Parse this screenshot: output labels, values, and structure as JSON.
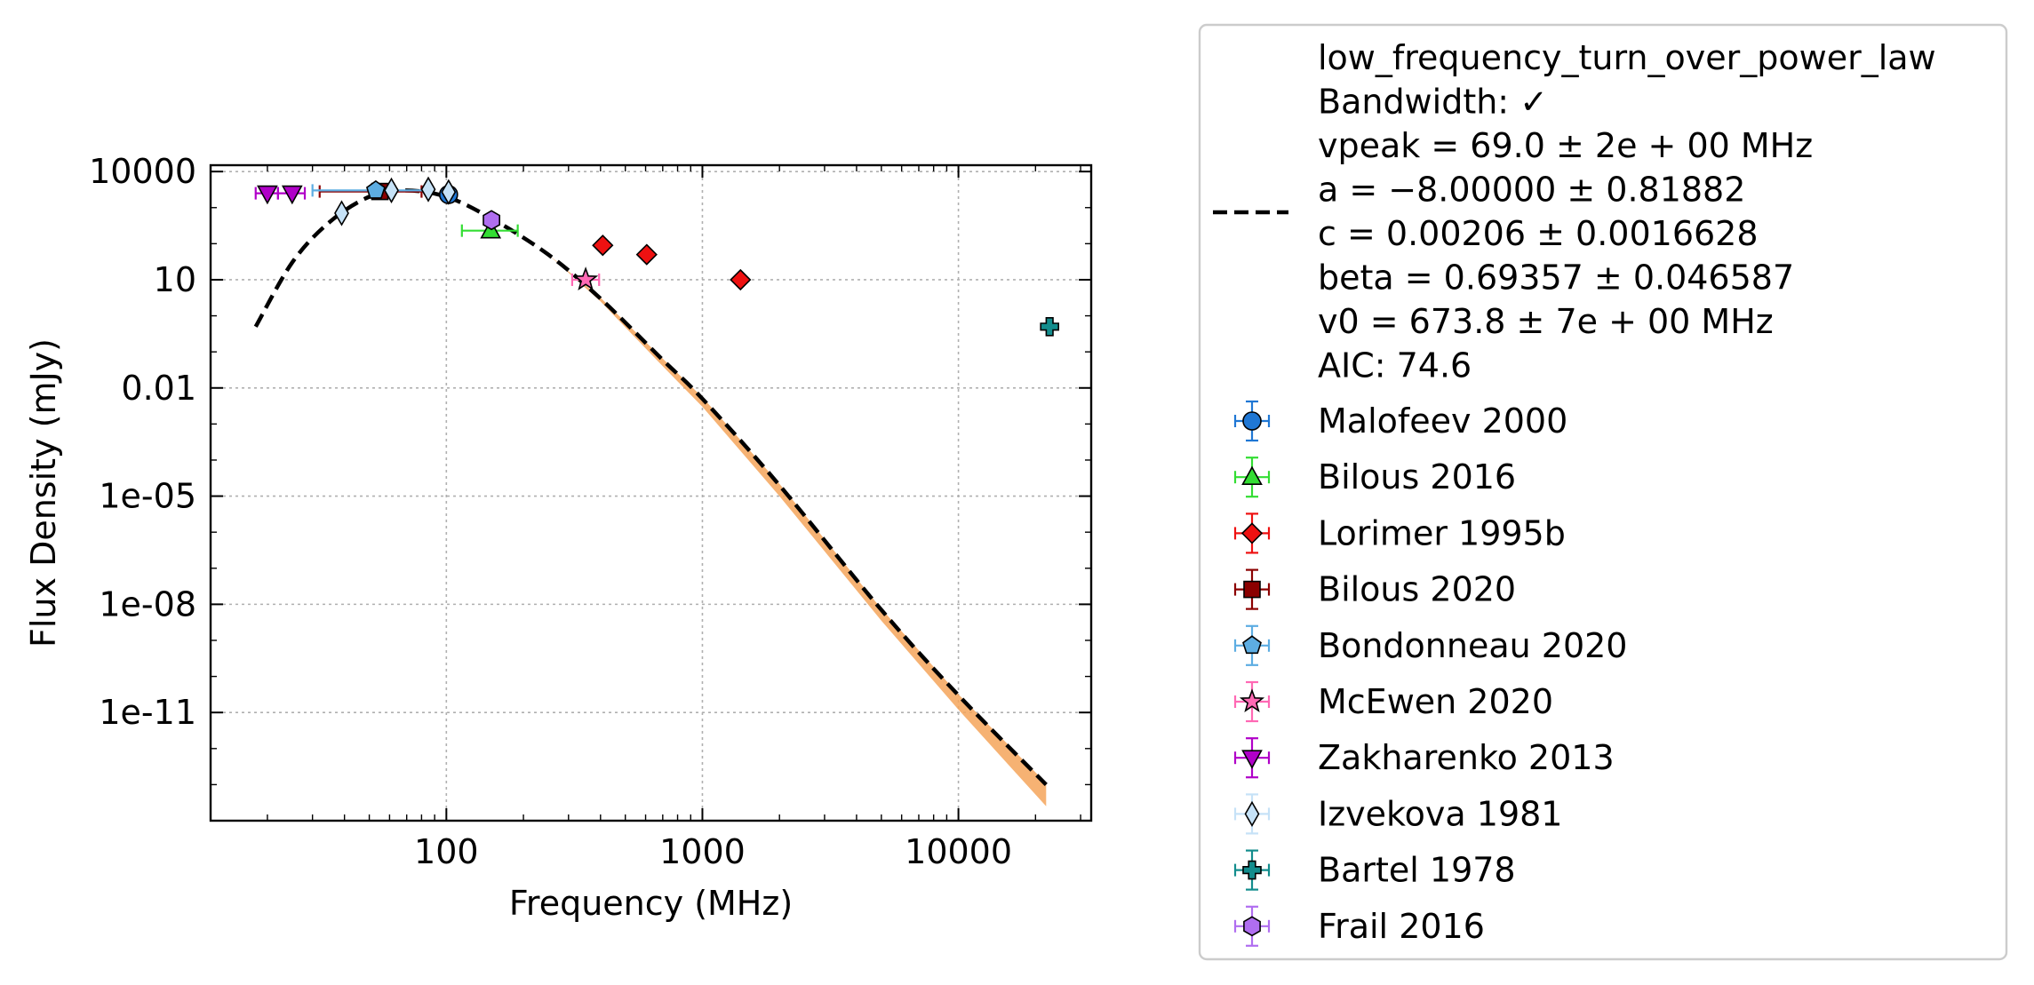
{
  "chart_data": {
    "type": "scatter",
    "title": "",
    "xlabel": "Frequency (MHz)",
    "ylabel": "Flux Density (mJy)",
    "xscale": "log",
    "yscale": "log",
    "xlim": [
      12,
      33000
    ],
    "ylim": [
      1e-14,
      15000
    ],
    "x_ticks": [
      100,
      1000,
      10000
    ],
    "x_tick_labels": [
      "100",
      "1000",
      "10000"
    ],
    "y_ticks": [
      10000,
      10,
      0.01,
      1e-05,
      1e-08,
      1e-11
    ],
    "y_tick_labels": [
      "10000",
      "10",
      "0.01",
      "1e-05",
      "1e-08",
      "1e-11"
    ],
    "grid": true,
    "legend_position": "outside-right",
    "fit": {
      "name": "low_frequency_turn_over_power_law",
      "label_lines": [
        "low_frequency_turn_over_power_law",
        "Bandwidth: ✓",
        "vpeak = 69.0 ± 2e + 00 MHz",
        "a = −8.00000 ± 0.81882",
        "c = 0.00206 ± 0.0016628",
        "beta = 0.69357 ± 0.046587",
        "v0 = 673.8 ± 7e + 00 MHz",
        "AIC: 74.6"
      ],
      "x": [
        18,
        25,
        35,
        50,
        69,
        100,
        150,
        250,
        400,
        700,
        1000,
        2000,
        5000,
        10000,
        22000
      ],
      "y": [
        0.5,
        30,
        400,
        2000,
        3000,
        2000,
        500,
        50,
        3,
        0.06,
        0.005,
        2e-05,
        7e-09,
        3e-11,
        1e-13
      ],
      "band_lower": [
        0.5,
        30,
        400,
        2000,
        3000,
        2000,
        500,
        50,
        2.5,
        0.04,
        0.003,
        1e-05,
        3.5e-09,
        1.2e-11,
        2.5e-14
      ],
      "band_upper": [
        0.5,
        30,
        400,
        2000,
        3000,
        2000,
        500,
        50,
        3.2,
        0.065,
        0.0055,
        2.2e-05,
        7.5e-09,
        3.2e-11,
        1.1e-13
      ],
      "color": "#000000",
      "band_color": "#f5a55a"
    },
    "series": [
      {
        "name": "Malofeev 2000",
        "marker": "circle",
        "color": "#1f77d4",
        "x": [
          102
        ],
        "y": [
          2300
        ],
        "xerr": [
          [
            0,
            0
          ]
        ]
      },
      {
        "name": "Bilous 2016",
        "marker": "triangle-up",
        "color": "#33dd33",
        "x": [
          149
        ],
        "y": [
          230
        ],
        "xerr": [
          [
            34,
            41
          ]
        ]
      },
      {
        "name": "Lorimer 1995b",
        "marker": "diamond",
        "color": "#ee1111",
        "x": [
          408,
          606,
          1408
        ],
        "y": [
          90,
          50,
          10
        ],
        "xerr": [
          [
            0,
            0
          ],
          [
            0,
            0
          ],
          [
            0,
            0
          ]
        ]
      },
      {
        "name": "Bilous 2020",
        "marker": "square",
        "color": "#8b0000",
        "x": [
          55
        ],
        "y": [
          2800
        ],
        "xerr": [
          [
            23,
            25
          ]
        ]
      },
      {
        "name": "Bondonneau 2020",
        "marker": "pentagon",
        "color": "#5dade2",
        "x": [
          53
        ],
        "y": [
          3000
        ],
        "xerr": [
          [
            23,
            31
          ]
        ]
      },
      {
        "name": "McEwen 2020",
        "marker": "star",
        "color": "#ff69b4",
        "x": [
          350
        ],
        "y": [
          10
        ],
        "xerr": [
          [
            40,
            45
          ]
        ]
      },
      {
        "name": "Zakharenko 2013",
        "marker": "triangle-down",
        "color": "#b000c8",
        "x": [
          20,
          25
        ],
        "y": [
          2500,
          2500
        ],
        "xerr": [
          [
            2,
            2
          ],
          [
            3,
            3
          ]
        ]
      },
      {
        "name": "Izvekova 1981",
        "marker": "thin-diamond",
        "color": "#c6e2f7",
        "x": [
          39,
          61,
          85,
          102
        ],
        "y": [
          700,
          3000,
          3200,
          2700
        ],
        "xerr": [
          [
            0,
            0
          ],
          [
            0,
            0
          ],
          [
            0,
            0
          ],
          [
            0,
            0
          ]
        ]
      },
      {
        "name": "Bartel 1978",
        "marker": "plus",
        "color": "#138d8d",
        "x": [
          22700
        ],
        "y": [
          0.5
        ],
        "xerr": [
          [
            0,
            0
          ]
        ]
      },
      {
        "name": "Frail 2016",
        "marker": "hexagon",
        "color": "#b06ef0",
        "x": [
          150
        ],
        "y": [
          450
        ],
        "xerr": [
          [
            0,
            0
          ]
        ]
      }
    ]
  }
}
